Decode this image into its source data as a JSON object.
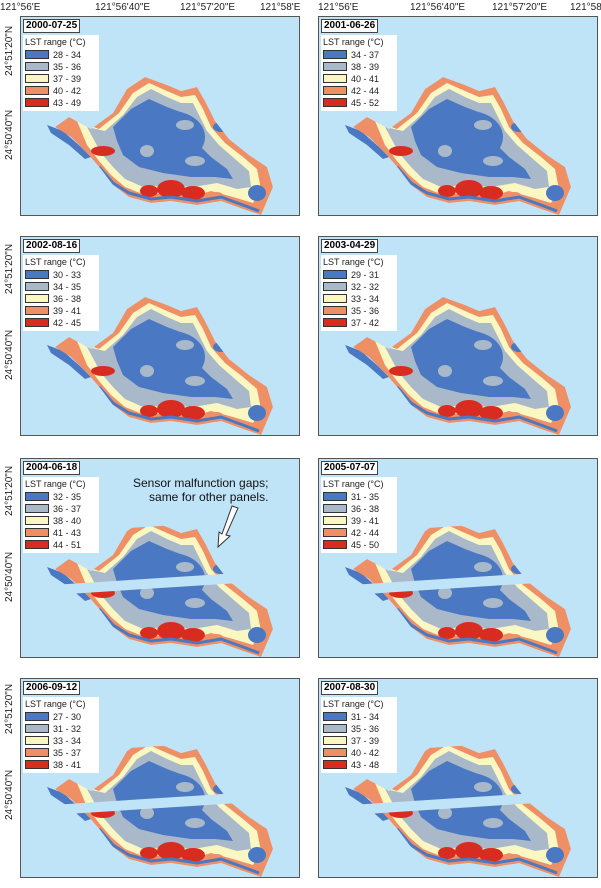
{
  "coords": {
    "lon_left": [
      "121°56'E",
      "121°56'40\"E",
      "121°57'20\"E",
      "121°58'E"
    ],
    "lon_right": [
      "121°56'E",
      "121°56'40\"E",
      "121°57'20\"E",
      "121°58"
    ],
    "lat": [
      "24°51'20\"N",
      "24°50'40\"N"
    ]
  },
  "legend_header": "LST range (°C)",
  "colors": [
    "#4a78c2",
    "#a9b9c9",
    "#fbf7c2",
    "#ee8f66",
    "#d92c20"
  ],
  "sea_color": "#bfe4f7",
  "panels": [
    {
      "date": "2000-07-25",
      "ranges": [
        "28 - 34",
        "35 - 36",
        "37 - 39",
        "40 - 42",
        "43 - 49"
      ],
      "gaps": false
    },
    {
      "date": "2001-06-26",
      "ranges": [
        "34 - 37",
        "38 - 39",
        "40 - 41",
        "42 - 44",
        "45 - 52"
      ],
      "gaps": false
    },
    {
      "date": "2002-08-16",
      "ranges": [
        "30 - 33",
        "34 - 35",
        "36 - 38",
        "39 - 41",
        "42 - 45"
      ],
      "gaps": false
    },
    {
      "date": "2003-04-29",
      "ranges": [
        "29 - 31",
        "32 - 32",
        "33 - 34",
        "35 - 36",
        "37 - 42"
      ],
      "gaps": false
    },
    {
      "date": "2004-06-18",
      "ranges": [
        "32 - 35",
        "36 - 37",
        "38 - 40",
        "41 - 43",
        "44 - 51"
      ],
      "gaps": true
    },
    {
      "date": "2005-07-07",
      "ranges": [
        "31 - 35",
        "36 - 38",
        "39 - 41",
        "42 - 44",
        "45 - 50"
      ],
      "gaps": true
    },
    {
      "date": "2006-09-12",
      "ranges": [
        "27 - 30",
        "31 - 32",
        "33 - 34",
        "35 - 37",
        "38 - 41"
      ],
      "gaps": true
    },
    {
      "date": "2007-08-30",
      "ranges": [
        "31 - 34",
        "35 - 36",
        "37 - 39",
        "40 - 42",
        "43 - 48"
      ],
      "gaps": true
    }
  ],
  "annotation": {
    "line1": "Sensor malfunction gaps;",
    "line2": "same for other panels."
  }
}
